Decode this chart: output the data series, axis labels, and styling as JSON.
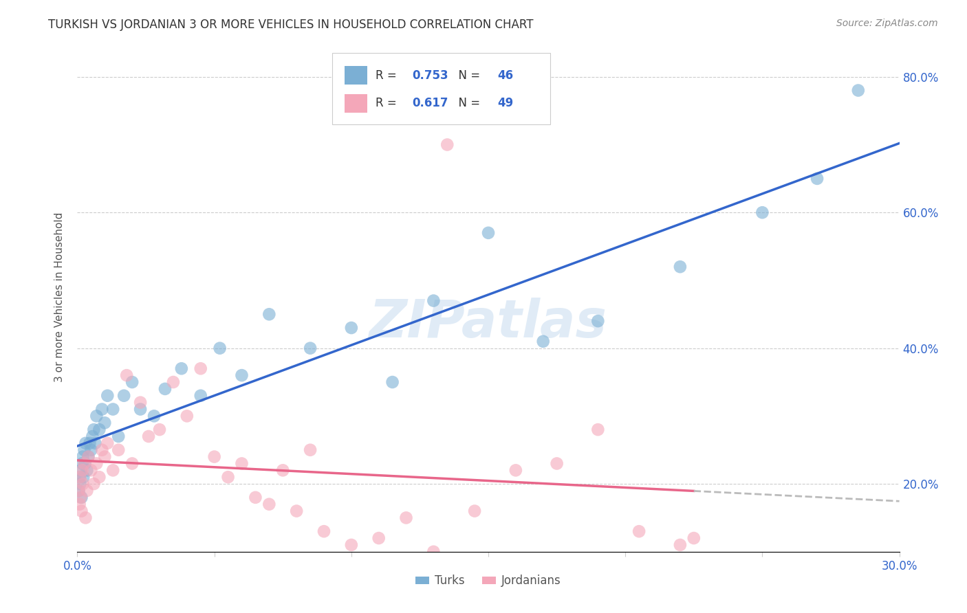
{
  "title": "TURKISH VS JORDANIAN 3 OR MORE VEHICLES IN HOUSEHOLD CORRELATION CHART",
  "source": "Source: ZipAtlas.com",
  "ylabel": "3 or more Vehicles in Household",
  "xmin": 0.0,
  "xmax": 30.0,
  "ymin": 10.0,
  "ymax": 85.0,
  "yticks": [
    20.0,
    40.0,
    60.0,
    80.0
  ],
  "turk_R": 0.753,
  "turk_N": 46,
  "jordan_R": 0.617,
  "jordan_N": 49,
  "turk_color": "#7BAFD4",
  "jordan_color": "#F4A7B9",
  "turk_line_color": "#3366CC",
  "jordan_line_color": "#E8668A",
  "dashed_line_color": "#BBBBBB",
  "watermark": "ZIPatlas",
  "turk_x": [
    0.05,
    0.08,
    0.1,
    0.12,
    0.15,
    0.18,
    0.2,
    0.22,
    0.25,
    0.28,
    0.3,
    0.35,
    0.4,
    0.45,
    0.5,
    0.55,
    0.6,
    0.65,
    0.7,
    0.8,
    0.9,
    1.0,
    1.1,
    1.3,
    1.5,
    1.7,
    2.0,
    2.3,
    2.8,
    3.2,
    3.8,
    4.5,
    5.2,
    6.0,
    7.0,
    8.5,
    10.0,
    11.5,
    13.0,
    15.0,
    17.0,
    19.0,
    22.0,
    25.0,
    27.0,
    28.5
  ],
  "turk_y": [
    19,
    21,
    20,
    22,
    18,
    23,
    24,
    21,
    25,
    23,
    26,
    22,
    24,
    26,
    25,
    27,
    28,
    26,
    30,
    28,
    31,
    29,
    33,
    31,
    27,
    33,
    35,
    31,
    30,
    34,
    37,
    33,
    40,
    36,
    45,
    40,
    43,
    35,
    47,
    57,
    41,
    44,
    52,
    60,
    65,
    78
  ],
  "jordan_x": [
    0.05,
    0.08,
    0.1,
    0.12,
    0.15,
    0.18,
    0.2,
    0.25,
    0.3,
    0.35,
    0.4,
    0.5,
    0.6,
    0.7,
    0.8,
    0.9,
    1.0,
    1.1,
    1.3,
    1.5,
    1.8,
    2.0,
    2.3,
    2.6,
    3.0,
    3.5,
    4.0,
    4.5,
    5.0,
    5.5,
    6.0,
    6.5,
    7.0,
    7.5,
    8.0,
    8.5,
    9.0,
    10.0,
    11.0,
    12.0,
    13.0,
    14.5,
    16.0,
    17.5,
    19.0,
    20.5,
    22.0,
    22.5,
    13.5
  ],
  "jordan_y": [
    19,
    17,
    21,
    18,
    16,
    22,
    20,
    23,
    15,
    19,
    24,
    22,
    20,
    23,
    21,
    25,
    24,
    26,
    22,
    25,
    36,
    23,
    32,
    27,
    28,
    35,
    30,
    37,
    24,
    21,
    23,
    18,
    17,
    22,
    16,
    25,
    13,
    11,
    12,
    15,
    10,
    16,
    22,
    23,
    28,
    13,
    11,
    12,
    70
  ]
}
